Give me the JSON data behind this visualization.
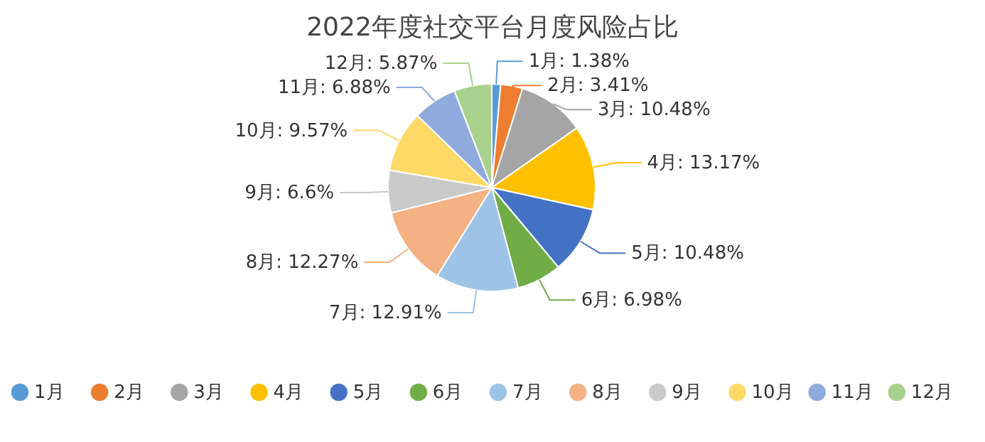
{
  "chart_data": {
    "type": "pie",
    "title": "2022年度社交平台月度风险占比",
    "categories": [
      "1月",
      "2月",
      "3月",
      "4月",
      "5月",
      "6月",
      "7月",
      "8月",
      "9月",
      "10月",
      "11月",
      "12月"
    ],
    "values": [
      1.38,
      3.41,
      10.48,
      13.17,
      10.48,
      6.98,
      12.91,
      12.27,
      6.6,
      9.57,
      6.88,
      5.87
    ],
    "value_labels": [
      "1月: 1.38%",
      "2月: 3.41%",
      "3月: 10.48%",
      "4月: 13.17%",
      "5月: 10.48%",
      "6月: 6.98%",
      "7月: 12.91%",
      "8月: 12.27%",
      "9月: 6.6%",
      "10月: 9.57%",
      "11月: 6.88%",
      "12月: 5.87%"
    ],
    "colors": [
      "#5b9bd5",
      "#ed7d31",
      "#a5a5a5",
      "#ffc000",
      "#4472c4",
      "#70ad47",
      "#9dc3e6",
      "#f4b183",
      "#c9c9c9",
      "#ffd966",
      "#8faadc",
      "#a9d18e"
    ],
    "legend": "bottom"
  }
}
